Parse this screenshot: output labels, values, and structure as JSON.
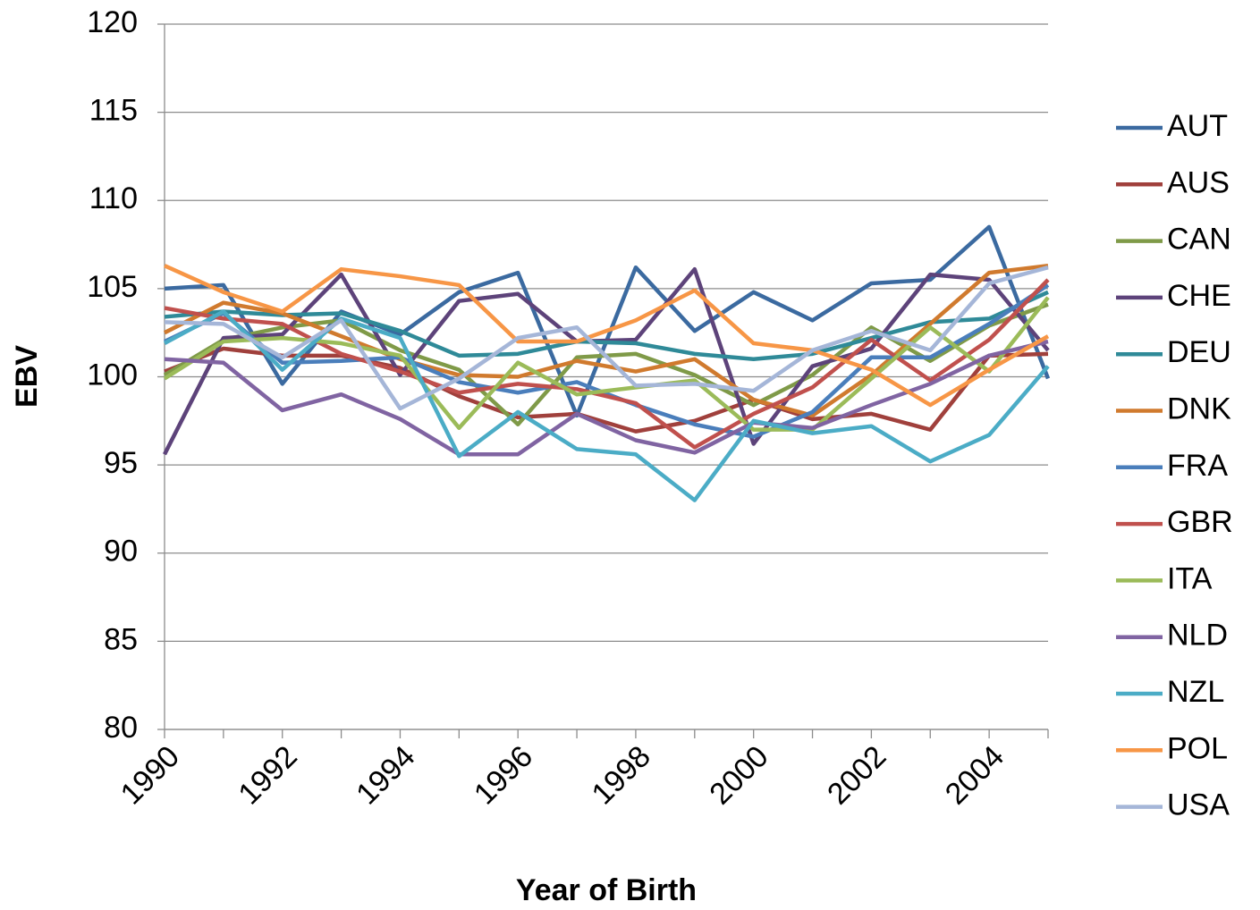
{
  "chart_data": {
    "type": "line",
    "x_label": "Year of Birth",
    "y_label": "EBV",
    "x": [
      1990,
      1991,
      1992,
      1993,
      1994,
      1995,
      1996,
      1997,
      1998,
      1999,
      2000,
      2001,
      2002,
      2003,
      2004,
      2005
    ],
    "xlim": [
      1990,
      2005
    ],
    "xticks": [
      1990,
      1992,
      1994,
      1996,
      1998,
      2000,
      2002,
      2004
    ],
    "ylim": [
      80,
      120
    ],
    "yticks": [
      80,
      85,
      90,
      95,
      100,
      105,
      110,
      115,
      120
    ],
    "grid": true,
    "legend": "right",
    "series": [
      {
        "name": "AUT",
        "color": "#3b6aa0",
        "values": [
          105.0,
          105.2,
          99.6,
          103.7,
          102.4,
          104.8,
          105.9,
          97.8,
          106.2,
          102.6,
          104.8,
          103.2,
          105.3,
          105.5,
          108.5,
          99.9
        ]
      },
      {
        "name": "AUS",
        "color": "#a0403c",
        "values": [
          100.3,
          101.6,
          101.2,
          101.2,
          100.5,
          98.9,
          97.7,
          97.9,
          96.9,
          97.5,
          98.7,
          97.6,
          97.9,
          97.0,
          101.2,
          101.3
        ]
      },
      {
        "name": "CAN",
        "color": "#7f9a48",
        "values": [
          100.1,
          102.1,
          102.8,
          103.2,
          101.5,
          100.4,
          97.3,
          101.1,
          101.3,
          100.1,
          98.4,
          100.1,
          102.8,
          100.9,
          102.9,
          104.1
        ]
      },
      {
        "name": "CHE",
        "color": "#5d437a",
        "values": [
          95.6,
          102.2,
          102.4,
          105.8,
          100.1,
          104.3,
          104.7,
          102.0,
          102.1,
          106.1,
          96.2,
          100.6,
          101.6,
          105.8,
          105.5,
          101.5
        ]
      },
      {
        "name": "DEU",
        "color": "#2f8a98",
        "values": [
          103.4,
          103.7,
          103.5,
          103.6,
          102.6,
          101.2,
          101.3,
          102.0,
          101.9,
          101.3,
          101.0,
          101.3,
          102.2,
          103.1,
          103.3,
          104.8
        ]
      },
      {
        "name": "DNK",
        "color": "#d07a2e",
        "values": [
          102.5,
          104.2,
          103.6,
          102.3,
          101.0,
          100.1,
          100.0,
          100.9,
          100.3,
          101.0,
          98.7,
          97.8,
          100.1,
          103.0,
          105.9,
          106.3
        ]
      },
      {
        "name": "FRA",
        "color": "#4a7ebb",
        "values": [
          102.0,
          103.6,
          100.8,
          100.9,
          101.1,
          99.7,
          99.1,
          99.7,
          98.4,
          97.3,
          96.6,
          98.0,
          101.1,
          101.1,
          103.0,
          105.2
        ]
      },
      {
        "name": "GBR",
        "color": "#c0504d",
        "values": [
          103.9,
          103.3,
          103.0,
          101.3,
          100.3,
          99.1,
          99.6,
          99.3,
          98.5,
          96.0,
          97.9,
          99.4,
          102.1,
          99.8,
          102.1,
          105.5
        ]
      },
      {
        "name": "ITA",
        "color": "#9bbb59",
        "values": [
          99.9,
          102.0,
          102.2,
          101.9,
          101.2,
          97.1,
          100.8,
          99.0,
          99.4,
          99.8,
          97.0,
          97.0,
          99.9,
          102.8,
          100.3,
          104.5
        ]
      },
      {
        "name": "NLD",
        "color": "#8064a2",
        "values": [
          101.0,
          100.8,
          98.1,
          99.0,
          97.6,
          95.6,
          95.6,
          97.9,
          96.4,
          95.7,
          97.4,
          97.1,
          98.4,
          99.6,
          101.2,
          102.0
        ]
      },
      {
        "name": "NZL",
        "color": "#4bacc6",
        "values": [
          101.9,
          103.7,
          100.4,
          103.3,
          102.2,
          95.5,
          98.0,
          95.9,
          95.6,
          93.0,
          97.5,
          96.8,
          97.2,
          95.2,
          96.7,
          100.6
        ]
      },
      {
        "name": "POL",
        "color": "#f79646",
        "values": [
          106.3,
          104.8,
          103.7,
          106.1,
          105.7,
          105.2,
          102.0,
          102.0,
          103.2,
          104.9,
          101.9,
          101.5,
          100.4,
          98.4,
          100.4,
          102.3
        ]
      },
      {
        "name": "USA",
        "color": "#a5b6d8",
        "values": [
          103.1,
          103.0,
          101.1,
          103.2,
          98.2,
          99.9,
          102.2,
          102.8,
          99.5,
          99.6,
          99.2,
          101.5,
          102.6,
          101.5,
          105.3,
          106.2
        ]
      }
    ]
  }
}
